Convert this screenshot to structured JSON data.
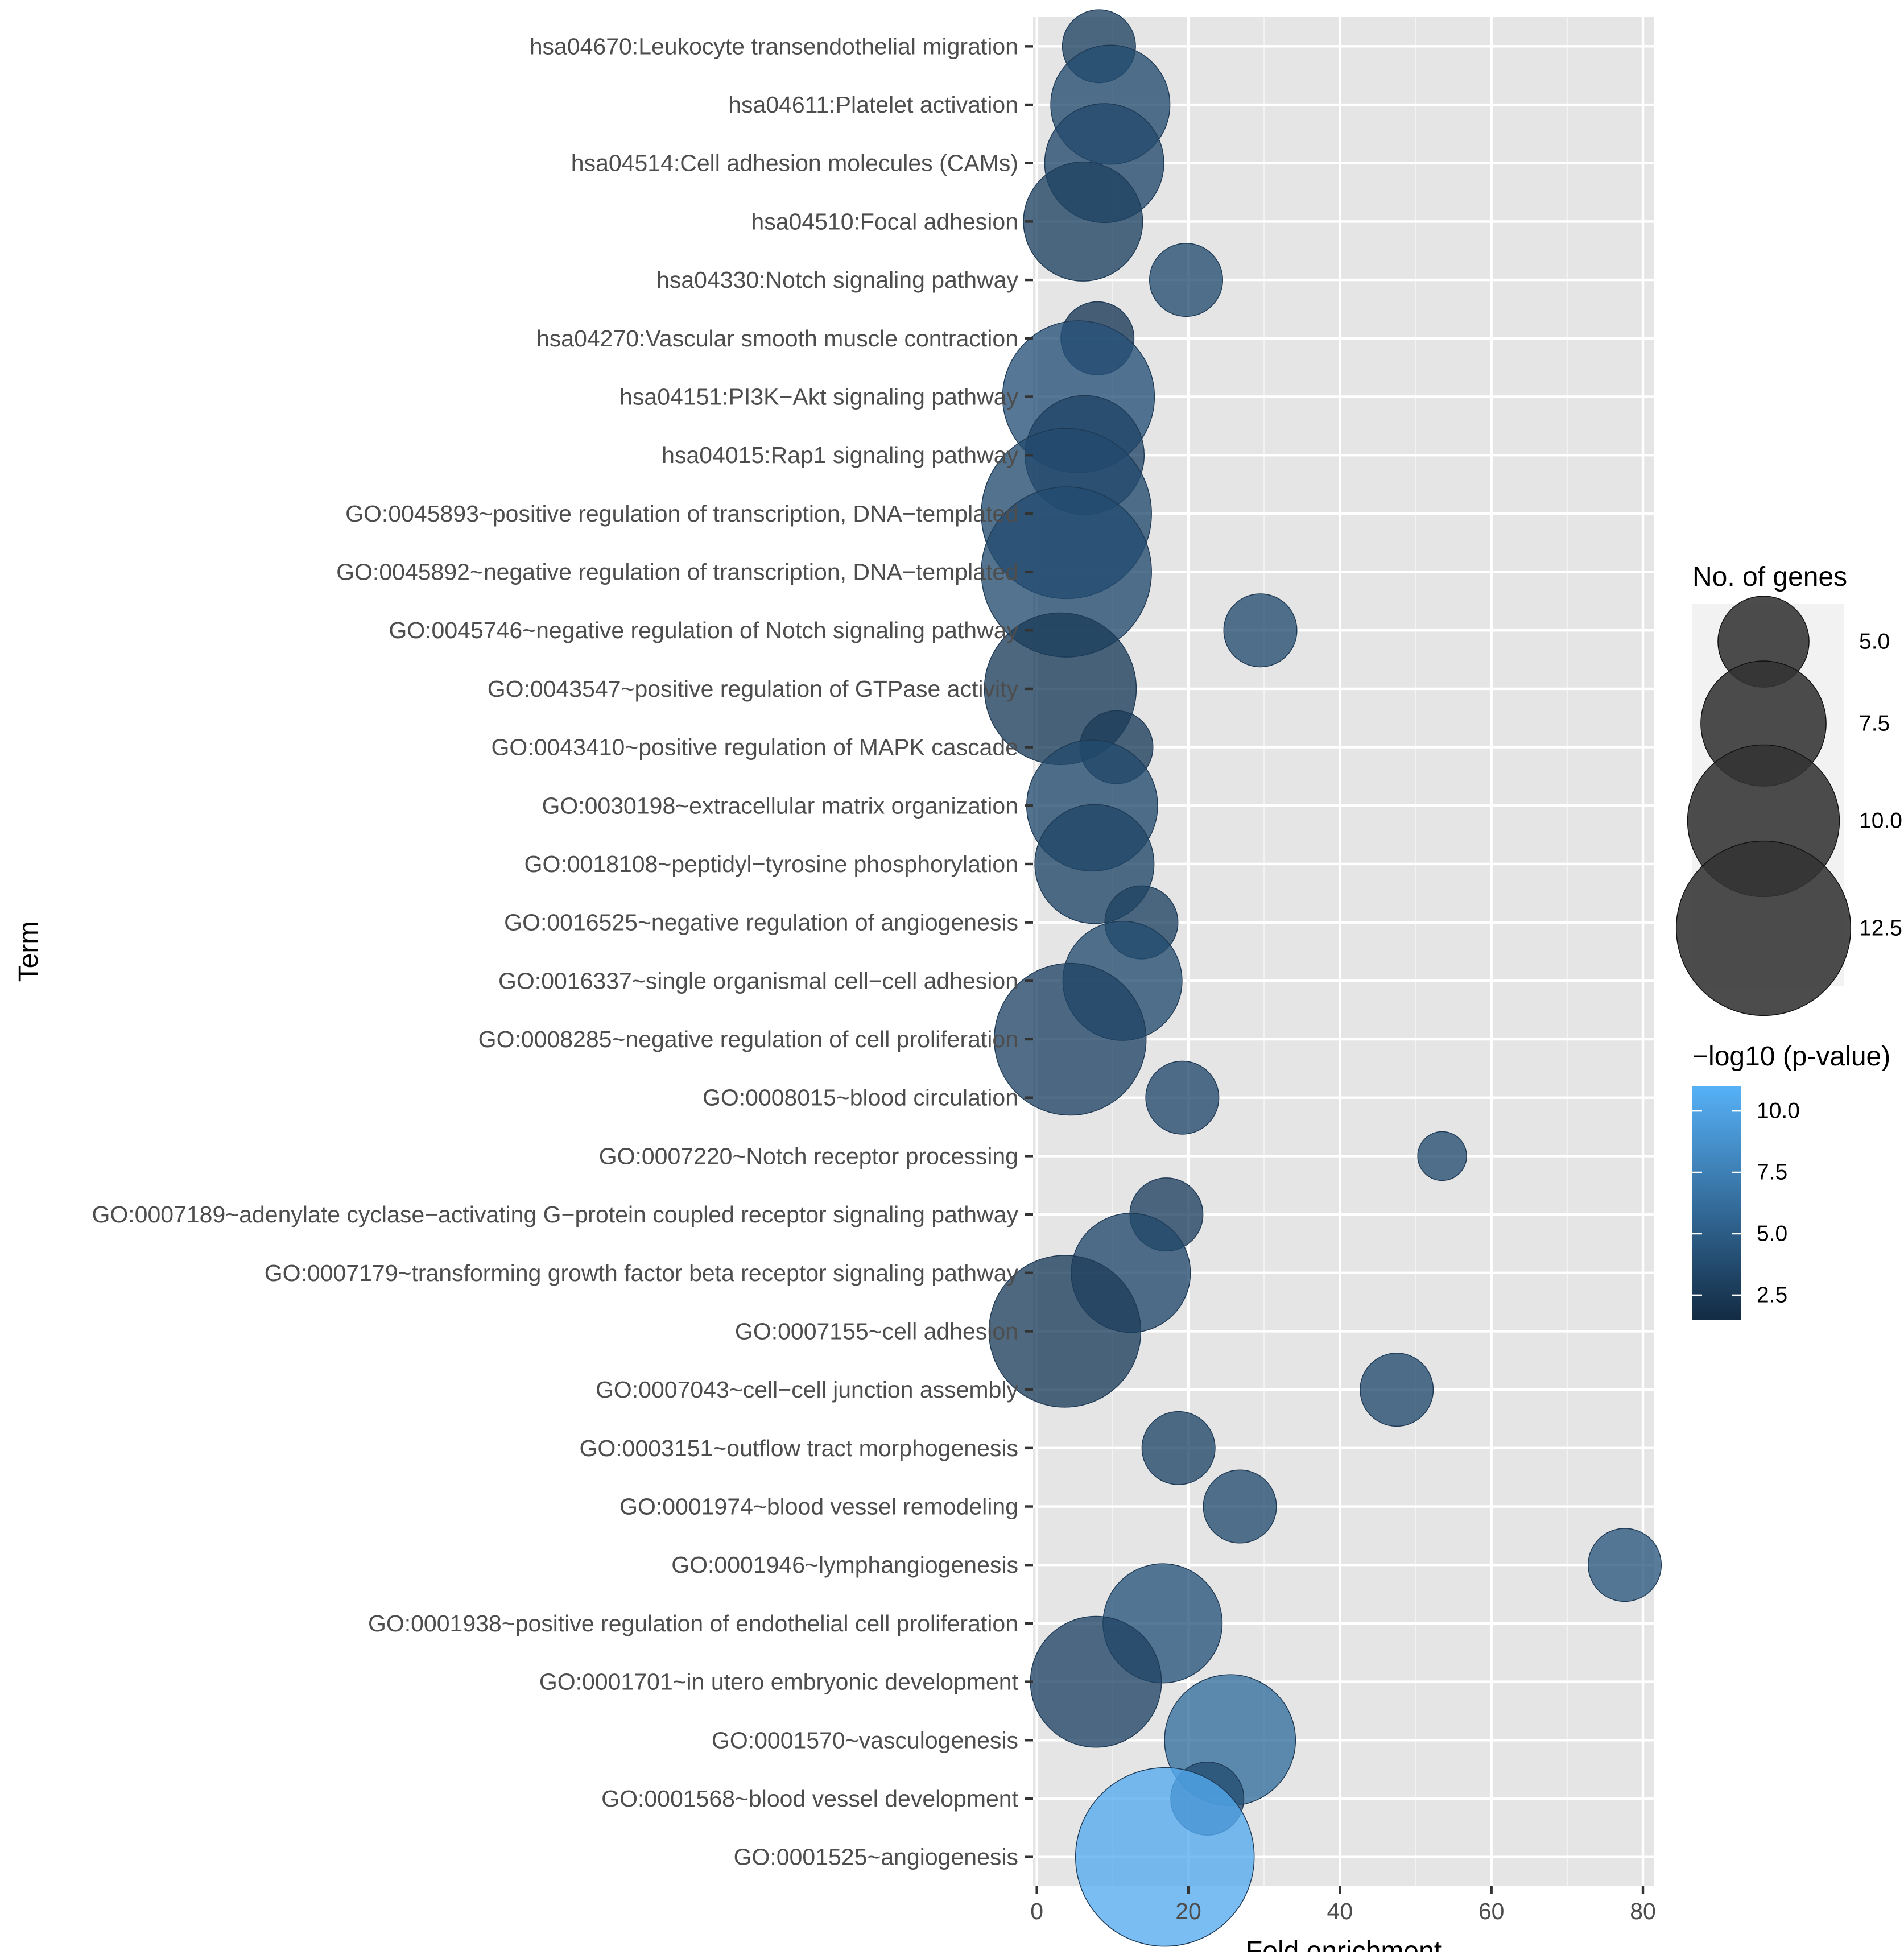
{
  "chart_data": {
    "type": "scatter",
    "subtype": "bubble",
    "xlabel": "Fold enrichment",
    "ylabel": "Term",
    "xlim": [
      -0.5,
      81.5
    ],
    "xticks": [
      0,
      20,
      40,
      60,
      80
    ],
    "grid": true,
    "terms": [
      {
        "label": "hsa04670:Leukocyte transendothelial migration",
        "fold": 8.2,
        "genes": 4,
        "logp": 3.2
      },
      {
        "label": "hsa04611:Platelet activation",
        "fold": 9.7,
        "genes": 7,
        "logp": 3.8
      },
      {
        "label": "hsa04514:Cell adhesion molecules (CAMs)",
        "fold": 8.9,
        "genes": 7,
        "logp": 3.6
      },
      {
        "label": "hsa04510:Focal adhesion",
        "fold": 6.1,
        "genes": 7,
        "logp": 3.1
      },
      {
        "label": "hsa04330:Notch signaling pathway",
        "fold": 19.7,
        "genes": 4,
        "logp": 3.9
      },
      {
        "label": "hsa04270:Vascular smooth muscle contraction",
        "fold": 8.0,
        "genes": 4,
        "logp": 2.5
      },
      {
        "label": "hsa04151:PI3K−Akt signaling pathway",
        "fold": 5.5,
        "genes": 10,
        "logp": 4.3
      },
      {
        "label": "hsa04015:Rap1 signaling pathway",
        "fold": 6.3,
        "genes": 7,
        "logp": 3.3
      },
      {
        "label": "GO:0045893~positive regulation of transcription, DNA−templated",
        "fold": 3.9,
        "genes": 12,
        "logp": 3.7
      },
      {
        "label": "GO:0045892~negative regulation of transcription, DNA−templated",
        "fold": 3.9,
        "genes": 12,
        "logp": 3.8
      },
      {
        "label": "GO:0045746~negative regulation of Notch signaling pathway",
        "fold": 29.5,
        "genes": 4,
        "logp": 3.9
      },
      {
        "label": "GO:0043547~positive regulation of GTPase activity",
        "fold": 3.1,
        "genes": 10,
        "logp": 2.7
      },
      {
        "label": "GO:0043410~positive regulation of MAPK cascade",
        "fold": 10.5,
        "genes": 4,
        "logp": 2.7
      },
      {
        "label": "GO:0030198~extracellular matrix organization",
        "fold": 7.3,
        "genes": 8,
        "logp": 3.7
      },
      {
        "label": "GO:0018108~peptidyl−tyrosine phosphorylation",
        "fold": 7.6,
        "genes": 7,
        "logp": 3.4
      },
      {
        "label": "GO:0016525~negative regulation of angiogenesis",
        "fold": 13.8,
        "genes": 4,
        "logp": 3.2
      },
      {
        "label": "GO:0016337~single organismal cell−cell adhesion",
        "fold": 11.3,
        "genes": 7,
        "logp": 3.9
      },
      {
        "label": "GO:0008285~negative regulation of cell proliferation",
        "fold": 4.4,
        "genes": 10,
        "logp": 3.3
      },
      {
        "label": "GO:0008015~blood circulation",
        "fold": 19.2,
        "genes": 4,
        "logp": 3.6
      },
      {
        "label": "GO:0007220~Notch receptor processing",
        "fold": 53.5,
        "genes": 3,
        "logp": 3.9
      },
      {
        "label": "GO:0007189~adenylate cyclase−activating G−protein coupled receptor signaling pathway",
        "fold": 17.1,
        "genes": 4,
        "logp": 3.0
      },
      {
        "label": "GO:0007179~transforming growth factor beta receptor signaling pathway",
        "fold": 12.4,
        "genes": 7,
        "logp": 3.6
      },
      {
        "label": "GO:0007155~cell adhesion",
        "fold": 3.7,
        "genes": 10,
        "logp": 2.8
      },
      {
        "label": "GO:0007043~cell−cell junction assembly",
        "fold": 47.5,
        "genes": 4,
        "logp": 3.7
      },
      {
        "label": "GO:0003151~outflow tract morphogenesis",
        "fold": 18.7,
        "genes": 4,
        "logp": 3.5
      },
      {
        "label": "GO:0001974~blood vessel remodeling",
        "fold": 26.8,
        "genes": 4,
        "logp": 3.9
      },
      {
        "label": "GO:0001946~lymphangiogenesis",
        "fold": 77.6,
        "genes": 4,
        "logp": 4.6
      },
      {
        "label": "GO:0001938~positive regulation of endothelial cell proliferation",
        "fold": 16.6,
        "genes": 7,
        "logp": 4.5
      },
      {
        "label": "GO:0001701~in utero embryonic development",
        "fold": 7.8,
        "genes": 8,
        "logp": 3.3
      },
      {
        "label": "GO:0001570~vasculogenesis",
        "fold": 25.5,
        "genes": 8,
        "logp": 6.3
      },
      {
        "label": "GO:0001568~blood vessel development",
        "fold": 22.5,
        "genes": 4,
        "logp": 3.8
      },
      {
        "label": "GO:0001525~angiogenesis",
        "fold": 16.9,
        "genes": 13,
        "logp": 10.6
      }
    ],
    "size_legend": {
      "title": "No. of genes",
      "entries": [
        {
          "value": 5.0,
          "label": "5.0"
        },
        {
          "value": 7.5,
          "label": "7.5"
        },
        {
          "value": 10.0,
          "label": "10.0"
        },
        {
          "value": 12.5,
          "label": "12.5"
        }
      ]
    },
    "color_legend": {
      "title": "−log10 (p-value)",
      "range": [
        1.5,
        11.0
      ],
      "ticks": [
        {
          "value": 10.0,
          "label": "10.0"
        },
        {
          "value": 7.5,
          "label": "7.5"
        },
        {
          "value": 5.0,
          "label": "5.0"
        },
        {
          "value": 2.5,
          "label": "2.5"
        }
      ],
      "low_color": "#132B43",
      "high_color": "#56B1F7"
    },
    "panel_background": "#E5E5E5",
    "point_stroke": "#1f3a55"
  }
}
